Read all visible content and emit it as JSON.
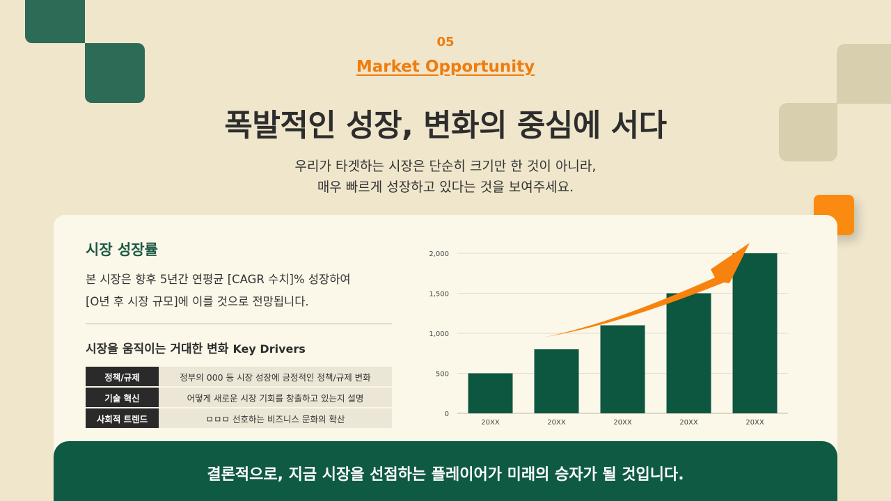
{
  "section": {
    "number": "05",
    "title": "Market Opportunity"
  },
  "headline": "폭발적인 성장, 변화의 중심에 서다",
  "subtext": [
    "우리가 타겟하는 시장은 단순히 크기만 한 것이 아니라,",
    "매우 빠르게 성장하고 있다는 것을 보여주세요."
  ],
  "growth": {
    "title": "시장 성장률",
    "lines": [
      "본 시장은 향후 5년간 연평균 [CAGR 수치]% 성장하여",
      "[O년 후 시장 규모]에 이를 것으로 전망됩니다."
    ]
  },
  "drivers": {
    "title": "시장을 움직이는 거대한 변화",
    "title_en": "Key Drivers",
    "rows": [
      {
        "key": "정책/규제",
        "value": "정부의 000 등 시장 성장에 긍정적인 정책/규제 변화"
      },
      {
        "key": "기술 혁신",
        "value": "어떻게 새로운 시장 기회를 창출하고 있는지 설명"
      },
      {
        "key": "사회적 트렌드",
        "value": "ㅁㅁㅁ 선호하는 비즈니스 문화의 확산"
      }
    ]
  },
  "chart_data": {
    "type": "bar",
    "categories": [
      "20XX",
      "20XX",
      "20XX",
      "20XX",
      "20XX"
    ],
    "values": [
      500,
      800,
      1100,
      1500,
      2000
    ],
    "ylim": [
      0,
      2000
    ],
    "yticks": [
      "0",
      "500",
      "1,000",
      "1,500",
      "2,000"
    ],
    "ytick_values": [
      0,
      500,
      1000,
      1500,
      2000
    ],
    "grid": true,
    "bar_color": "#0d5640",
    "arrow_color": "#f7830e"
  },
  "banner": "결론적으로, 지금 시장을 선점하는 플레이어가 미래의 승자가 될 것입니다."
}
